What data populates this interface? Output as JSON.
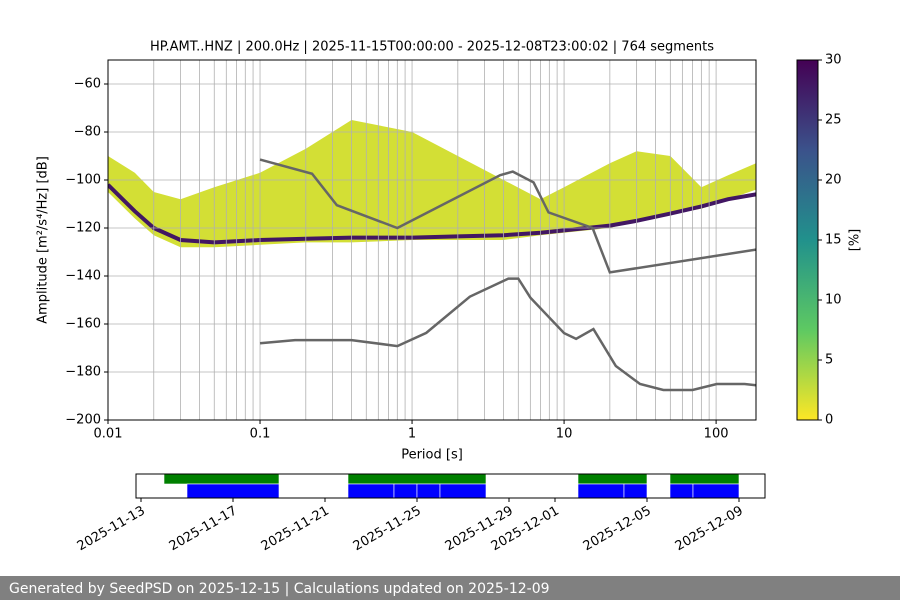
{
  "chart_data": [
    {
      "type": "psd",
      "title": "HP.AMT..HNZ | 200.0Hz | 2025-11-15T00:00:00 - 2025-12-08T23:00:02 | 764 segments",
      "xlabel": "Period [s]",
      "ylabel": "Amplitude [m²/s⁴/Hz] [dB]",
      "log_x": true,
      "grid": true,
      "xlim": [
        0.01,
        183
      ],
      "ylim": [
        -200,
        -50
      ],
      "xticks": [
        0.01,
        0.1,
        1,
        10,
        100
      ],
      "xminorticks": [
        0.02,
        0.03,
        0.04,
        0.05,
        0.06,
        0.07,
        0.08,
        0.09,
        0.2,
        0.3,
        0.4,
        0.5,
        0.6,
        0.7,
        0.8,
        0.9,
        2,
        3,
        4,
        5,
        6,
        7,
        8,
        9,
        20,
        30,
        40,
        50,
        60,
        70,
        80,
        90
      ],
      "yticks": [
        {
          "value": -200,
          "label": "−200"
        },
        {
          "value": -180,
          "label": "−180"
        },
        {
          "value": -160,
          "label": "−160"
        },
        {
          "value": -140,
          "label": "−140"
        },
        {
          "value": -120,
          "label": "−120"
        },
        {
          "value": -100,
          "label": "−100"
        },
        {
          "value": -80,
          "label": "−80"
        },
        {
          "value": -60,
          "label": "−60"
        }
      ],
      "density": {
        "x": [
          0.01,
          0.015,
          0.02,
          0.03,
          0.05,
          0.1,
          0.2,
          0.4,
          1,
          2,
          4,
          7,
          10,
          20,
          30,
          50,
          80,
          120,
          183
        ],
        "upper": [
          -90,
          -97,
          -105,
          -108,
          -103,
          -97,
          -87,
          -75,
          -80,
          -90,
          -100,
          -108,
          -103,
          -93,
          -88,
          -90,
          -103,
          -98,
          -93
        ],
        "lower": [
          -105,
          -116,
          -123,
          -128,
          -128,
          -127,
          -126,
          -126,
          -125,
          -125,
          -125,
          -123,
          -122,
          -120,
          -117,
          -114,
          -112,
          -108,
          -104
        ],
        "percent": 2,
        "mode": [
          -102,
          -113,
          -120,
          -125,
          -126,
          -125,
          -124.5,
          -124,
          -124,
          -123.5,
          -123,
          -122,
          -121,
          -119,
          -117,
          -114,
          -111,
          -108,
          -106
        ],
        "mode_percent": 28
      },
      "series": [
        {
          "color": "#666666",
          "x": [
            0.1,
            0.22,
            0.32,
            0.8,
            3.8,
            4.6,
            6.3,
            7.9,
            15.4,
            20,
            183
          ],
          "values": [
            -91.5,
            -97.4,
            -110.5,
            -120,
            -98,
            -96.5,
            -101,
            -113.5,
            -120,
            -138.5,
            -129
          ]
        },
        {
          "color": "#666666",
          "x": [
            0.1,
            0.17,
            0.4,
            0.8,
            1.24,
            2.4,
            4.3,
            5,
            6,
            10,
            12,
            15.6,
            21.9,
            31.6,
            45,
            70,
            101,
            154,
            183
          ],
          "values": [
            -168,
            -166.7,
            -166.7,
            -169.2,
            -163.7,
            -148.6,
            -141.1,
            -141.1,
            -149,
            -163.8,
            -166.2,
            -162.1,
            -177.5,
            -185,
            -187.5,
            -187.5,
            -185,
            -185,
            -185.5
          ]
        }
      ],
      "colorbar": {
        "label": "[%]",
        "lim": [
          0,
          30
        ],
        "ticks": [
          0,
          5,
          10,
          15,
          20,
          25,
          30
        ],
        "colors": [
          "#fde725",
          "#5ec962",
          "#21918c",
          "#3b528b",
          "#440154"
        ]
      }
    },
    {
      "type": "timeline",
      "xlim": [
        "2025-11-13",
        "2025-12-10"
      ],
      "xticks": [
        "2025-11-13",
        "2025-11-17",
        "2025-11-21",
        "2025-11-25",
        "2025-11-29",
        "2025-12-01",
        "2025-12-05",
        "2025-12-09"
      ],
      "series": [
        {
          "color": "#008000",
          "segments": [
            [
              "2025-11-14",
              "2025-11-19"
            ],
            [
              "2025-11-22",
              "2025-11-28"
            ],
            [
              "2025-12-02",
              "2025-12-05"
            ],
            [
              "2025-12-06",
              "2025-12-09"
            ]
          ]
        },
        {
          "color": "#0000ff",
          "segments": [
            [
              "2025-11-15",
              "2025-11-19"
            ],
            [
              "2025-11-22",
              "2025-11-24"
            ],
            [
              "2025-11-24",
              "2025-11-25"
            ],
            [
              "2025-11-25",
              "2025-11-26"
            ],
            [
              "2025-11-26",
              "2025-11-28"
            ],
            [
              "2025-12-02",
              "2025-12-04"
            ],
            [
              "2025-12-04",
              "2025-12-05"
            ],
            [
              "2025-12-06",
              "2025-12-07"
            ],
            [
              "2025-12-07",
              "2025-12-09"
            ]
          ]
        }
      ]
    }
  ],
  "footer": "Generated by SeedPSD on 2025-12-15 | Calculations updated on 2025-12-09"
}
